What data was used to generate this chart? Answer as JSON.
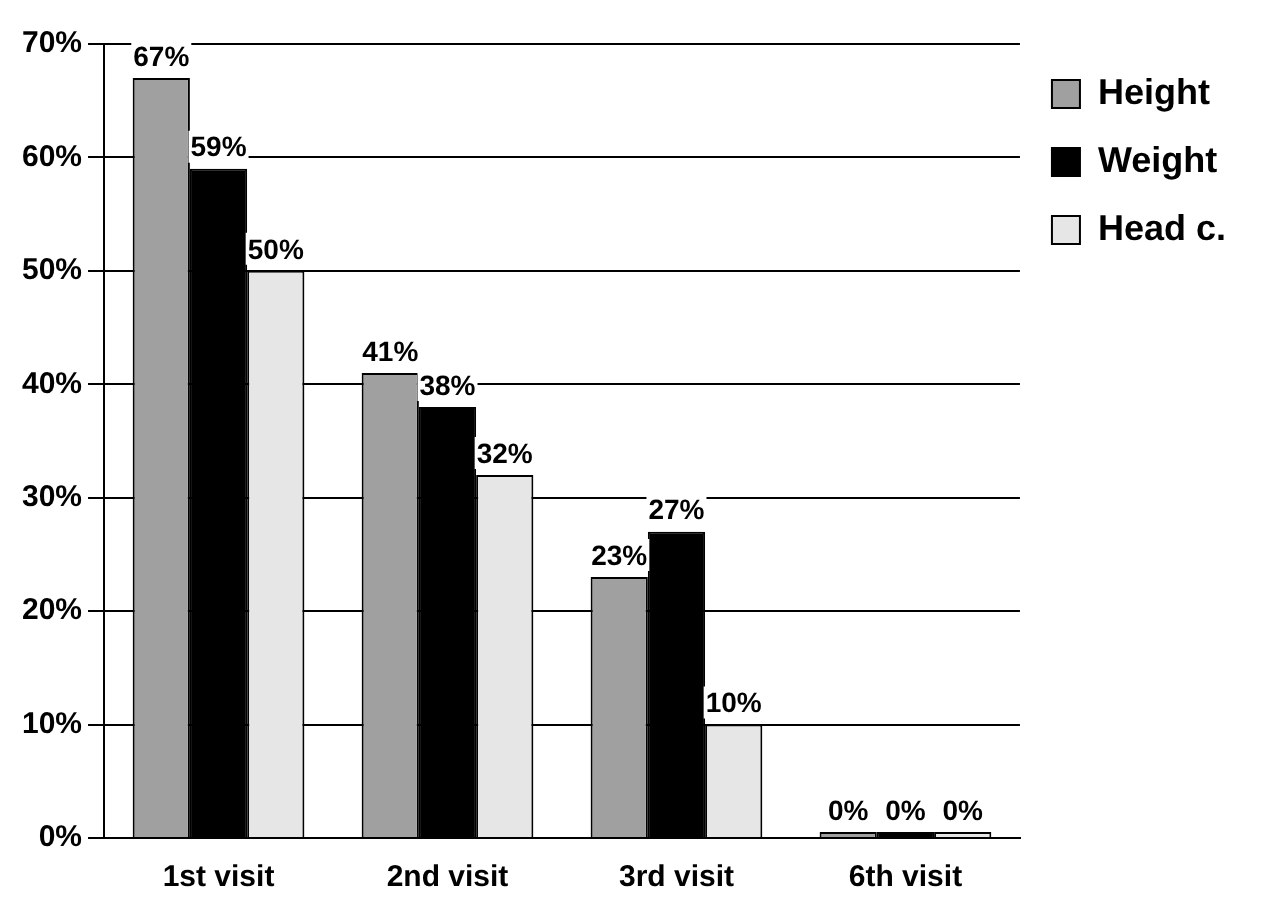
{
  "chart_data": {
    "type": "bar",
    "categories": [
      "1st visit",
      "2nd visit",
      "3rd visit",
      "6th visit"
    ],
    "series": [
      {
        "name": "Height",
        "color": "#a0a0a0",
        "values": [
          67,
          41,
          23,
          0
        ],
        "value_labels": [
          "67%",
          "41%",
          "23%",
          "0%"
        ]
      },
      {
        "name": "Weight",
        "color": "#000000",
        "values": [
          59,
          38,
          27,
          0
        ],
        "value_labels": [
          "59%",
          "38%",
          "27%",
          "0%"
        ]
      },
      {
        "name": "Head c.",
        "color": "#e6e6e6",
        "values": [
          50,
          32,
          10,
          0
        ],
        "value_labels": [
          "50%",
          "32%",
          "10%",
          "0%"
        ]
      }
    ],
    "ylim": [
      0,
      70
    ],
    "yticks": [
      {
        "value": 0,
        "label": "0%"
      },
      {
        "value": 10,
        "label": "10%"
      },
      {
        "value": 20,
        "label": "20%"
      },
      {
        "value": 30,
        "label": "30%"
      },
      {
        "value": 40,
        "label": "40%"
      },
      {
        "value": 50,
        "label": "50%"
      },
      {
        "value": 60,
        "label": "60%"
      },
      {
        "value": 70,
        "label": "70%"
      }
    ],
    "grid": "y",
    "legend": "top right"
  }
}
